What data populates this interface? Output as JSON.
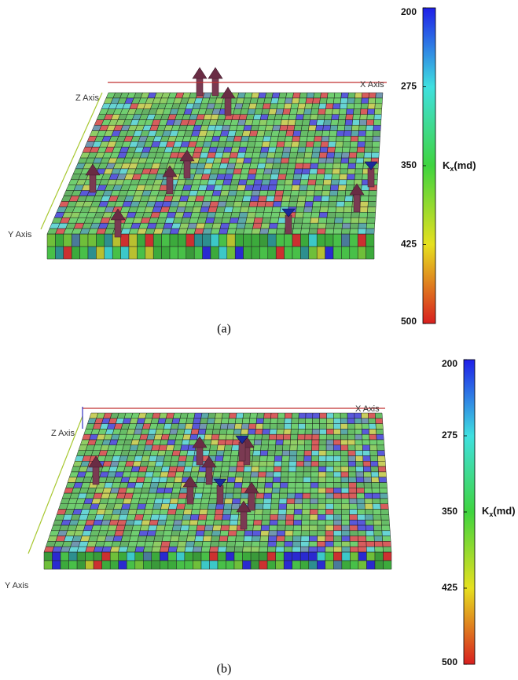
{
  "panels": [
    {
      "label": "(a)",
      "axes": {
        "x": "X Axis",
        "y": "Y Axis",
        "z": "Z Axis"
      },
      "colorbar": {
        "ticks": [
          200,
          275,
          350,
          425,
          500
        ],
        "title": {
          "symbol": "K",
          "subscript": "x",
          "unit": "(md)"
        }
      }
    },
    {
      "label": "(b)",
      "axes": {
        "x": "X Axis",
        "y": "Y Axis",
        "z": "Z Axis"
      },
      "colorbar": {
        "ticks": [
          200,
          275,
          350,
          425,
          500
        ],
        "title": {
          "symbol": "K",
          "subscript": "x",
          "unit": "(md)"
        }
      }
    }
  ]
}
